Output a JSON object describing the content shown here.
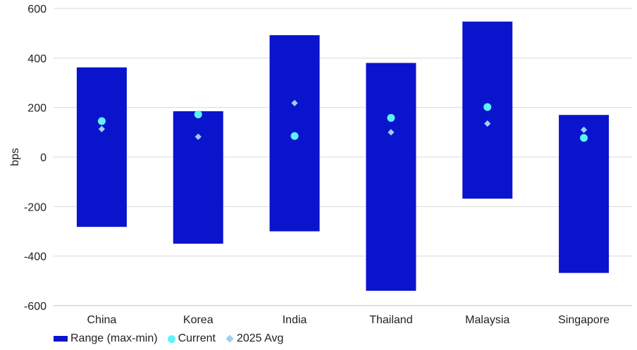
{
  "chart_data": {
    "type": "bar",
    "categories": [
      "China",
      "Korea",
      "India",
      "Thailand",
      "Malaysia",
      "Singapore"
    ],
    "series": [
      {
        "name": "Range (max-min)",
        "kind": "floating-bar",
        "max": [
          362,
          185,
          492,
          380,
          547,
          170
        ],
        "min": [
          -282,
          -350,
          -300,
          -540,
          -168,
          -468
        ]
      },
      {
        "name": "Current",
        "kind": "dot",
        "values": [
          145,
          172,
          85,
          158,
          202,
          77
        ]
      },
      {
        "name": "2025 Avg",
        "kind": "diamond",
        "values": [
          113,
          82,
          218,
          100,
          135,
          110
        ]
      }
    ],
    "xlabel": "",
    "ylabel": "bps",
    "ylim": [
      -600,
      600
    ],
    "yticks": [
      "600",
      "400",
      "200",
      "0",
      "-200",
      "-400",
      "-600"
    ],
    "grid": true,
    "legend_position": "bottom-left",
    "colors": {
      "range": "#0A14CC",
      "current": "#5CF2F7",
      "avg": "#9ECFF5",
      "grid": "#d9d9d9",
      "axis": "#bfbfbf"
    }
  }
}
